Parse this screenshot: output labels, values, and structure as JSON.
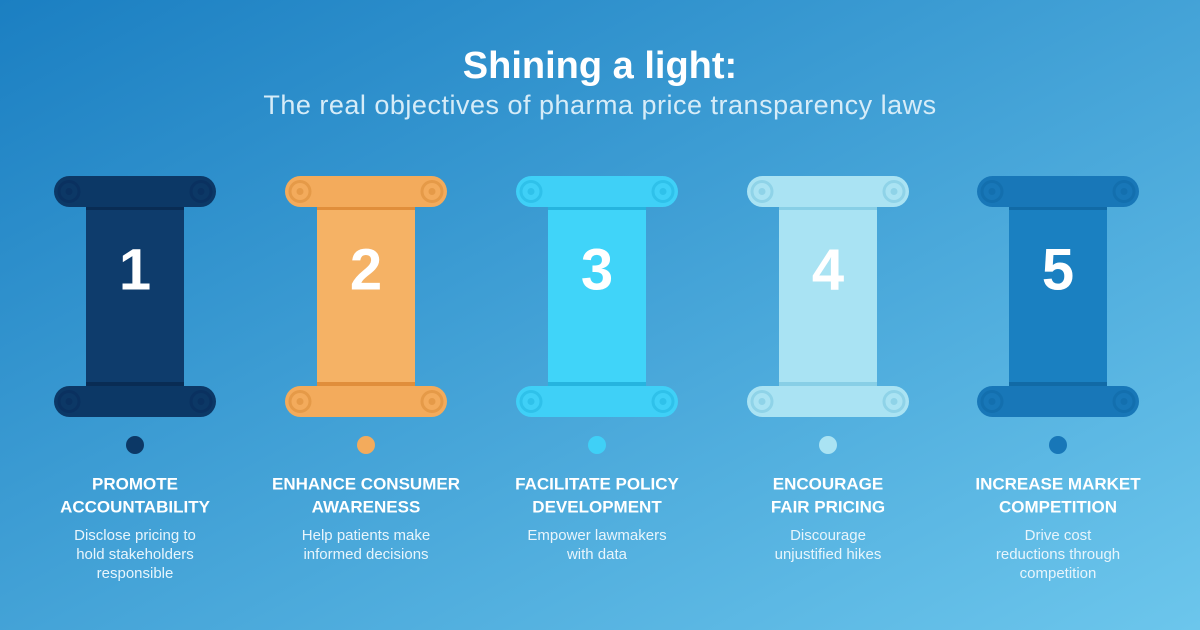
{
  "header": {
    "title": "Shining a light:",
    "subtitle": "The real objectives of pharma price transparency laws"
  },
  "items": [
    {
      "number": "1",
      "heading": [
        "PROMOTE",
        "ACCOUNTABILITY"
      ],
      "description": [
        "Disclose pricing to",
        "hold stakeholders",
        "responsible"
      ]
    },
    {
      "number": "2",
      "heading": [
        "ENHANCE CONSUMER",
        "AWARENESS"
      ],
      "description": [
        "Help patients make",
        "informed decisions"
      ]
    },
    {
      "number": "3",
      "heading": [
        "FACILITATE POLICY",
        "DEVELOPMENT"
      ],
      "description": [
        "Empower lawmakers",
        "with data"
      ]
    },
    {
      "number": "4",
      "heading": [
        "ENCOURAGE",
        "FAIR PRICING"
      ],
      "description": [
        "Discourage",
        "unjustified hikes"
      ]
    },
    {
      "number": "5",
      "heading": [
        "INCREASE MARKET",
        "COMPETITION"
      ],
      "description": [
        "Drive cost",
        "reductions through",
        "competition"
      ]
    }
  ]
}
